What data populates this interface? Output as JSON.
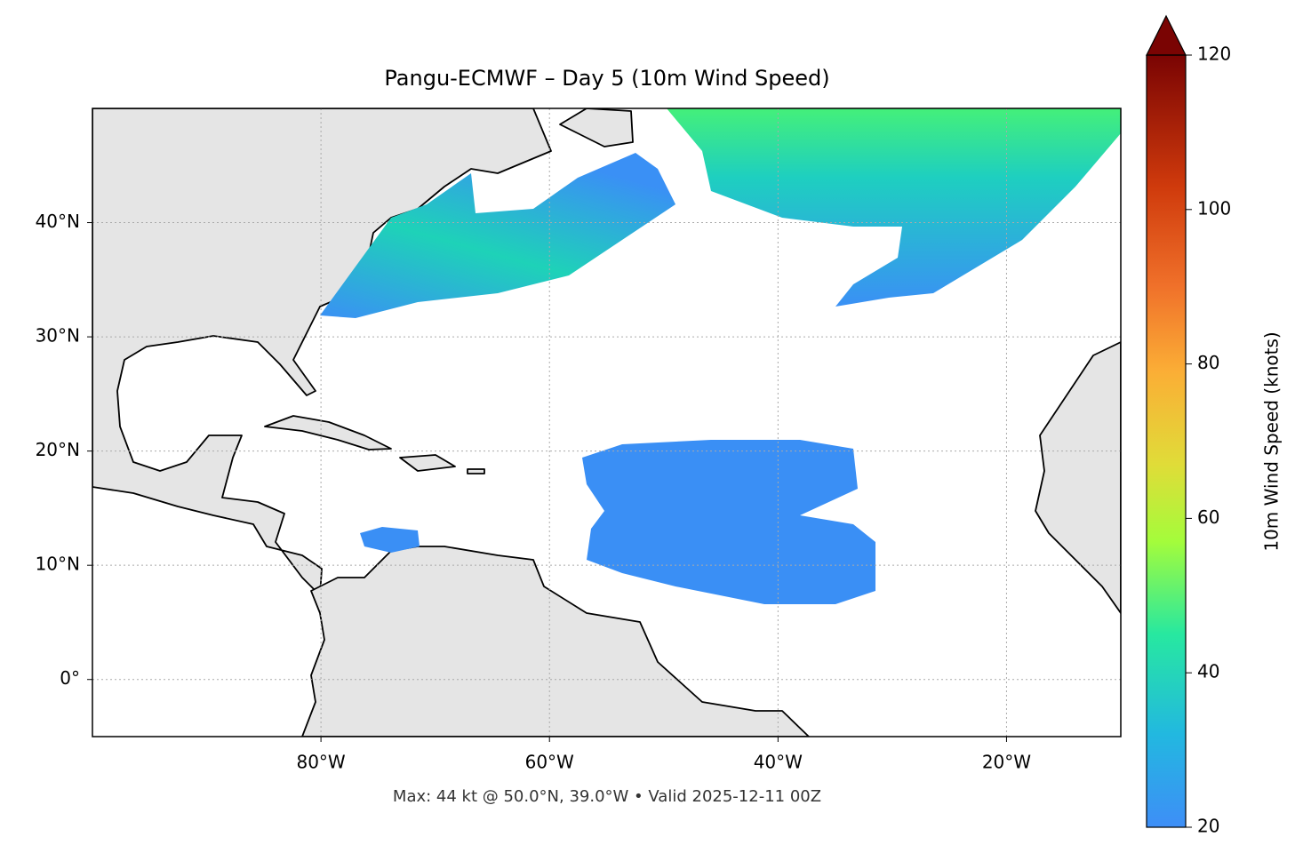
{
  "title": "Pangu-ECMWF – Day 5 (10m Wind Speed)",
  "map": {
    "type": "map",
    "xlim": [
      -100,
      -10
    ],
    "ylim": [
      -5,
      50
    ],
    "xticks": [
      {
        "value": -80,
        "label": "80°W"
      },
      {
        "value": -60,
        "label": "60°W"
      },
      {
        "value": -40,
        "label": "40°W"
      },
      {
        "value": -20,
        "label": "20°W"
      }
    ],
    "yticks": [
      {
        "value": 0,
        "label": "0°"
      },
      {
        "value": 10,
        "label": "10°N"
      },
      {
        "value": 20,
        "label": "20°N"
      },
      {
        "value": 30,
        "label": "30°N"
      },
      {
        "value": 40,
        "label": "40°N"
      }
    ],
    "grid": true
  },
  "colorbar": {
    "label": "10m Wind Speed (knots)",
    "lim": [
      20,
      120
    ],
    "ticks": [
      20,
      40,
      60,
      80,
      100,
      120
    ],
    "extend": "max"
  },
  "note": "Max: 44 kt @ 50.0°N, 39.0°W • Valid 2025-12-11 00Z"
}
